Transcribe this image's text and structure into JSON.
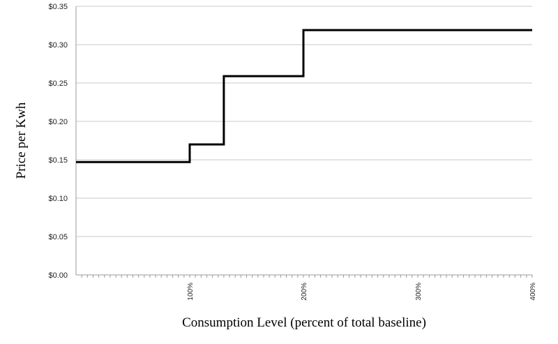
{
  "chart_data": {
    "type": "line",
    "step": true,
    "xlabel": "Consumption Level (percent of total baseline)",
    "ylabel": "Price per Kwh",
    "x_categories": [
      "100%",
      "200%",
      "300%",
      "400%"
    ],
    "y_ticks": [
      "$0.00",
      "$0.05",
      "$0.10",
      "$0.15",
      "$0.20",
      "$0.25",
      "$0.30",
      "$0.35"
    ],
    "ylim": [
      0,
      0.35
    ],
    "grid": "horizontal",
    "legend": "none",
    "series": [
      {
        "color": "#000000",
        "points": [
          {
            "x": "0%",
            "y": 0.147
          },
          {
            "x": "100%",
            "y": 0.147
          },
          {
            "x": "100%",
            "y": 0.17
          },
          {
            "x": "130%",
            "y": 0.17
          },
          {
            "x": "130%",
            "y": 0.259
          },
          {
            "x": "200%",
            "y": 0.259
          },
          {
            "x": "200%",
            "y": 0.319
          },
          {
            "x": "400%",
            "y": 0.319
          }
        ]
      }
    ]
  }
}
